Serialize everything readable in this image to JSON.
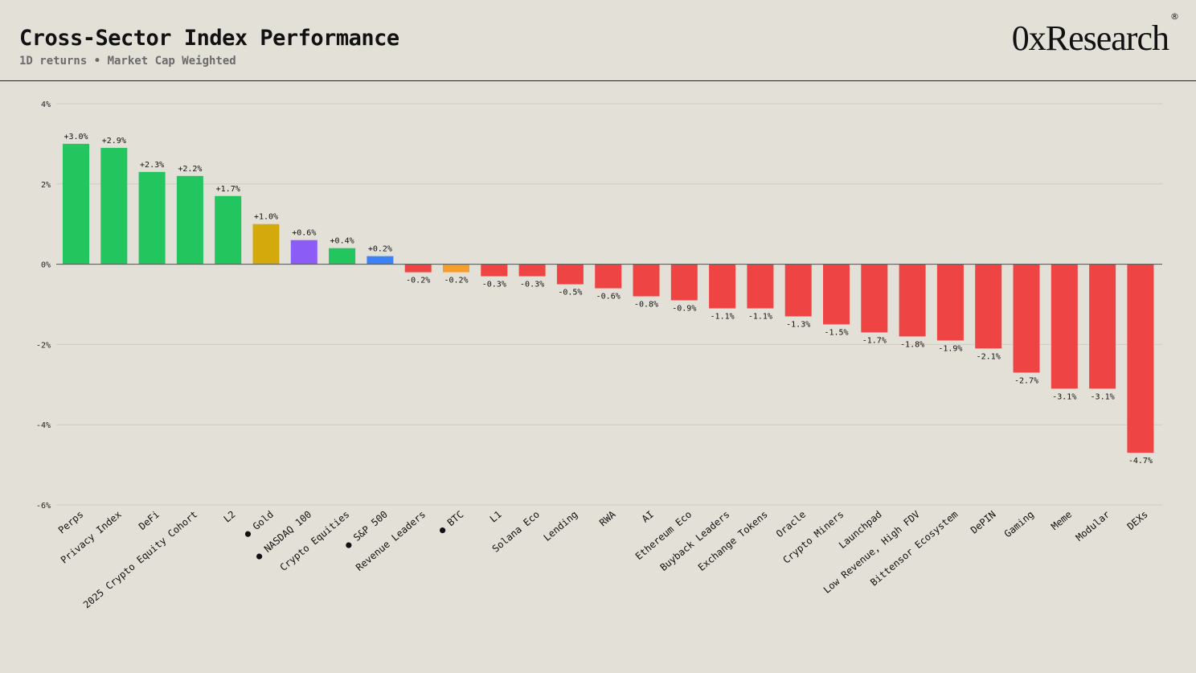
{
  "header": {
    "title": "Cross-Sector Index Performance",
    "subtitle": "1D returns • Market Cap Weighted",
    "brand": "0xResearch",
    "brand_mark": "®"
  },
  "chart_data": {
    "type": "bar",
    "title": "Cross-Sector Index Performance",
    "subtitle": "1D returns • Market Cap Weighted",
    "xlabel": "",
    "ylabel": "",
    "ylim": [
      -6,
      4
    ],
    "yticks": [
      4,
      2,
      0,
      -2,
      -4,
      -6
    ],
    "ytick_labels": [
      "4%",
      "2%",
      "0%",
      "-2%",
      "-4%",
      "-6%"
    ],
    "grid": true,
    "legend": "none",
    "categories": [
      "Perps",
      "Privacy Index",
      "DeFi",
      "2025 Crypto Equity Cohort",
      "L2",
      "Gold",
      "NASDAQ 100",
      "Crypto Equities",
      "S&P 500",
      "Revenue Leaders",
      "BTC",
      "L1",
      "Solana Eco",
      "Lending",
      "RWA",
      "AI",
      "Ethereum Eco",
      "Buyback Leaders",
      "Exchange Tokens",
      "Oracle",
      "Crypto Miners",
      "Launchpad",
      "Low Revenue, High FDV",
      "Bittensor Ecosystem",
      "DePIN",
      "Gaming",
      "Meme",
      "Modular",
      "DEXs"
    ],
    "values": [
      3.0,
      2.9,
      2.3,
      2.2,
      1.7,
      1.0,
      0.6,
      0.4,
      0.2,
      -0.2,
      -0.2,
      -0.3,
      -0.3,
      -0.5,
      -0.6,
      -0.8,
      -0.9,
      -1.1,
      -1.1,
      -1.3,
      -1.5,
      -1.7,
      -1.8,
      -1.9,
      -2.1,
      -2.7,
      -3.1,
      -3.1,
      -4.7
    ],
    "value_labels": [
      "+3.0%",
      "+2.9%",
      "+2.3%",
      "+2.2%",
      "+1.7%",
      "+1.0%",
      "+0.6%",
      "+0.4%",
      "+0.2%",
      "-0.2%",
      "-0.2%",
      "-0.3%",
      "-0.3%",
      "-0.5%",
      "-0.6%",
      "-0.8%",
      "-0.9%",
      "-1.1%",
      "-1.1%",
      "-1.3%",
      "-1.5%",
      "-1.7%",
      "-1.8%",
      "-1.9%",
      "-2.1%",
      "-2.7%",
      "-3.1%",
      "-3.1%",
      "-4.7%"
    ],
    "colors": [
      "#22c55e",
      "#22c55e",
      "#22c55e",
      "#22c55e",
      "#22c55e",
      "#d4a90c",
      "#8b5cf6",
      "#22c55e",
      "#3b82f6",
      "#ef4444",
      "#f59e2b",
      "#ef4444",
      "#ef4444",
      "#ef4444",
      "#ef4444",
      "#ef4444",
      "#ef4444",
      "#ef4444",
      "#ef4444",
      "#ef4444",
      "#ef4444",
      "#ef4444",
      "#ef4444",
      "#ef4444",
      "#ef4444",
      "#ef4444",
      "#ef4444",
      "#ef4444",
      "#ef4444"
    ],
    "benchmark_marker": "●",
    "benchmarks": [
      "Gold",
      "NASDAQ 100",
      "S&P 500",
      "BTC"
    ]
  }
}
